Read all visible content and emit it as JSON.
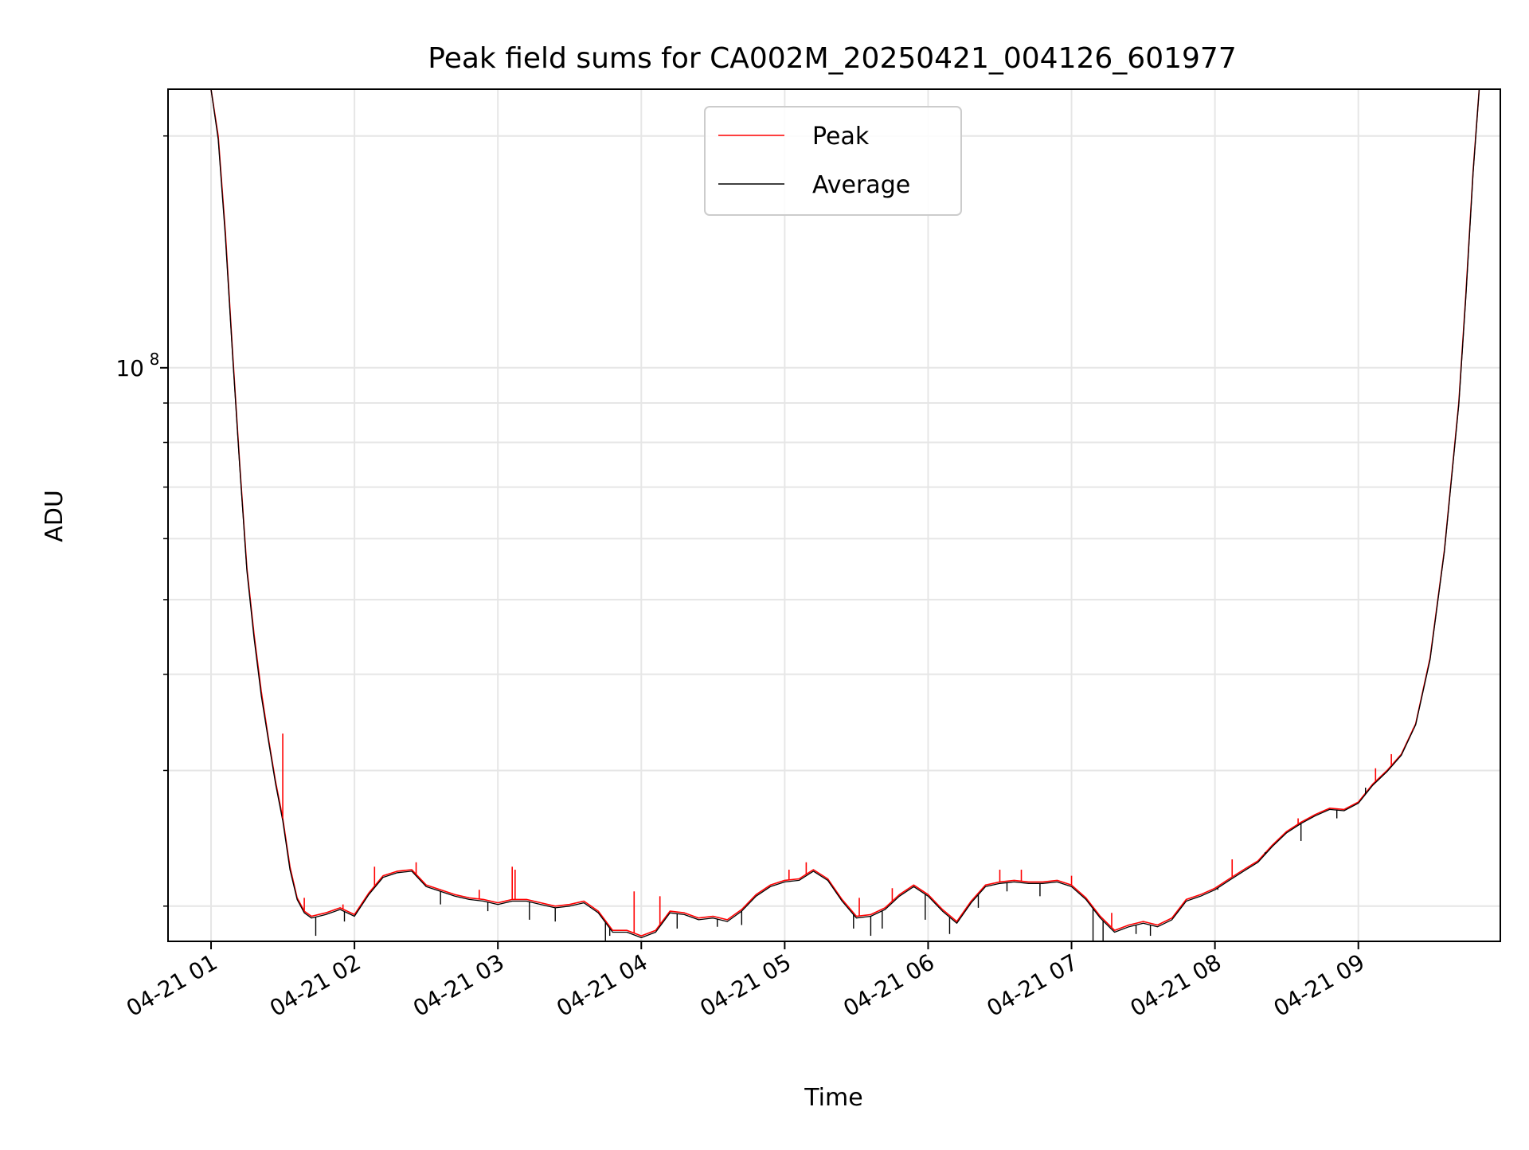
{
  "chart_data": {
    "type": "line",
    "title": "Peak field sums for CA002M_20250421_004126_601977",
    "xlabel": "Time",
    "ylabel": "ADU",
    "x_unit": "hours of 2025-04-21 (local chart time)",
    "x_tick_labels": [
      "04-21 01",
      "04-21 02",
      "04-21 03",
      "04-21 04",
      "04-21 05",
      "04-21 06",
      "04-21 07",
      "04-21 08",
      "04-21 09"
    ],
    "x_ticks": [
      1,
      2,
      3,
      4,
      5,
      6,
      7,
      8,
      9
    ],
    "xlim": [
      0.7,
      9.99
    ],
    "y_scale": "log",
    "ylim": [
      18000000,
      230000000
    ],
    "y_major_tick": {
      "value": 100000000,
      "label_base": "10",
      "label_exp": "8"
    },
    "y_minor_ticks": [
      20000000,
      30000000,
      40000000,
      50000000,
      60000000,
      70000000,
      80000000,
      90000000,
      200000000
    ],
    "grid": true,
    "legend_location": "upper center",
    "series": [
      {
        "name": "Peak",
        "color": "#ff0000"
      },
      {
        "name": "Average",
        "color": "#000000"
      }
    ],
    "x": [
      1.0,
      1.05,
      1.1,
      1.15,
      1.2,
      1.25,
      1.3,
      1.35,
      1.4,
      1.45,
      1.5,
      1.55,
      1.6,
      1.65,
      1.7,
      1.8,
      1.9,
      2.0,
      2.1,
      2.2,
      2.3,
      2.4,
      2.5,
      2.6,
      2.7,
      2.8,
      2.9,
      3.0,
      3.1,
      3.2,
      3.3,
      3.4,
      3.5,
      3.6,
      3.7,
      3.8,
      3.9,
      4.0,
      4.1,
      4.2,
      4.3,
      4.4,
      4.5,
      4.6,
      4.7,
      4.8,
      4.9,
      5.0,
      5.1,
      5.2,
      5.3,
      5.4,
      5.5,
      5.6,
      5.7,
      5.8,
      5.9,
      6.0,
      6.1,
      6.2,
      6.3,
      6.4,
      6.5,
      6.6,
      6.7,
      6.8,
      6.9,
      7.0,
      7.1,
      7.2,
      7.3,
      7.4,
      7.5,
      7.6,
      7.7,
      7.8,
      7.9,
      8.0,
      8.1,
      8.2,
      8.3,
      8.4,
      8.5,
      8.6,
      8.7,
      8.8,
      8.9,
      9.0,
      9.1,
      9.2,
      9.3,
      9.4,
      9.5,
      9.6,
      9.7,
      9.75,
      9.8,
      9.85
    ],
    "peak": [
      230000000,
      200000000,
      150000000,
      105000000,
      75000000,
      55000000,
      45000000,
      38000000,
      33000000,
      29000000,
      26000000,
      22500000,
      20500000,
      19700000,
      19400000,
      19600000,
      19900000,
      19500000,
      20800000,
      21900000,
      22200000,
      22300000,
      21300000,
      21000000,
      20700000,
      20500000,
      20400000,
      20200000,
      20400000,
      20400000,
      20200000,
      20000000,
      20100000,
      20300000,
      19700000,
      18600000,
      18600000,
      18300000,
      18600000,
      19700000,
      19600000,
      19300000,
      19400000,
      19200000,
      19800000,
      20700000,
      21300000,
      21600000,
      21700000,
      22300000,
      21700000,
      20400000,
      19400000,
      19500000,
      19900000,
      20700000,
      21300000,
      20700000,
      19800000,
      19100000,
      20300000,
      21300000,
      21500000,
      21600000,
      21500000,
      21500000,
      21600000,
      21300000,
      20500000,
      19400000,
      18600000,
      18900000,
      19100000,
      18900000,
      19300000,
      20400000,
      20700000,
      21100000,
      21700000,
      22300000,
      22900000,
      24000000,
      25000000,
      25700000,
      26300000,
      26800000,
      26700000,
      27300000,
      28800000,
      30000000,
      31500000,
      34500000,
      42000000,
      58000000,
      90000000,
      125000000,
      180000000,
      240000000
    ],
    "average": [
      230000000,
      198000000,
      148000000,
      104000000,
      74500000,
      54500000,
      44500000,
      37500000,
      32800000,
      28800000,
      25800000,
      22300000,
      20400000,
      19600000,
      19300000,
      19500000,
      19800000,
      19400000,
      20700000,
      21800000,
      22100000,
      22200000,
      21200000,
      20900000,
      20600000,
      20400000,
      20300000,
      20100000,
      20300000,
      20300000,
      20100000,
      19900000,
      20000000,
      20200000,
      19600000,
      18500000,
      18500000,
      18200000,
      18500000,
      19600000,
      19500000,
      19200000,
      19300000,
      19100000,
      19700000,
      20600000,
      21200000,
      21500000,
      21600000,
      22200000,
      21600000,
      20300000,
      19300000,
      19400000,
      19800000,
      20600000,
      21200000,
      20600000,
      19700000,
      19000000,
      20200000,
      21200000,
      21400000,
      21500000,
      21400000,
      21400000,
      21500000,
      21200000,
      20400000,
      19300000,
      18500000,
      18800000,
      19000000,
      18800000,
      19200000,
      20300000,
      20600000,
      21000000,
      21600000,
      22200000,
      22800000,
      23900000,
      24900000,
      25600000,
      26200000,
      26700000,
      26600000,
      27200000,
      28700000,
      29900000,
      31400000,
      34400000,
      41800000,
      57800000,
      89500000,
      124000000,
      179000000,
      240000000
    ],
    "peak_spikes": [
      [
        1.5,
        33500000
      ],
      [
        1.65,
        20500000
      ],
      [
        1.92,
        20100000
      ],
      [
        2.14,
        22500000
      ],
      [
        2.43,
        22800000
      ],
      [
        2.87,
        21000000
      ],
      [
        3.1,
        22500000
      ],
      [
        3.12,
        22300000
      ],
      [
        3.95,
        20900000
      ],
      [
        4.13,
        20600000
      ],
      [
        5.03,
        22300000
      ],
      [
        5.15,
        22800000
      ],
      [
        5.52,
        20500000
      ],
      [
        5.75,
        21100000
      ],
      [
        6.5,
        22300000
      ],
      [
        6.65,
        22300000
      ],
      [
        7.0,
        21900000
      ],
      [
        7.28,
        19600000
      ],
      [
        8.12,
        23000000
      ],
      [
        8.45,
        24500000
      ],
      [
        8.58,
        26000000
      ],
      [
        8.65,
        26000000
      ],
      [
        9.12,
        30200000
      ],
      [
        9.23,
        31500000
      ],
      [
        9.38,
        34000000
      ]
    ],
    "average_dips": [
      [
        1.73,
        18300000
      ],
      [
        1.93,
        19100000
      ],
      [
        2.6,
        20100000
      ],
      [
        2.93,
        19700000
      ],
      [
        3.22,
        19200000
      ],
      [
        3.4,
        19100000
      ],
      [
        3.75,
        17700000
      ],
      [
        3.78,
        18300000
      ],
      [
        4.25,
        18700000
      ],
      [
        4.53,
        18800000
      ],
      [
        4.7,
        18900000
      ],
      [
        5.48,
        18700000
      ],
      [
        5.6,
        18300000
      ],
      [
        5.68,
        18700000
      ],
      [
        5.98,
        19200000
      ],
      [
        6.15,
        18400000
      ],
      [
        6.35,
        19900000
      ],
      [
        6.55,
        20900000
      ],
      [
        6.78,
        20600000
      ],
      [
        7.15,
        17800000
      ],
      [
        7.22,
        17600000
      ],
      [
        7.45,
        18400000
      ],
      [
        7.55,
        18300000
      ],
      [
        8.02,
        21000000
      ],
      [
        8.35,
        23500000
      ],
      [
        8.6,
        24300000
      ],
      [
        8.85,
        26000000
      ],
      [
        9.05,
        28500000
      ]
    ]
  }
}
